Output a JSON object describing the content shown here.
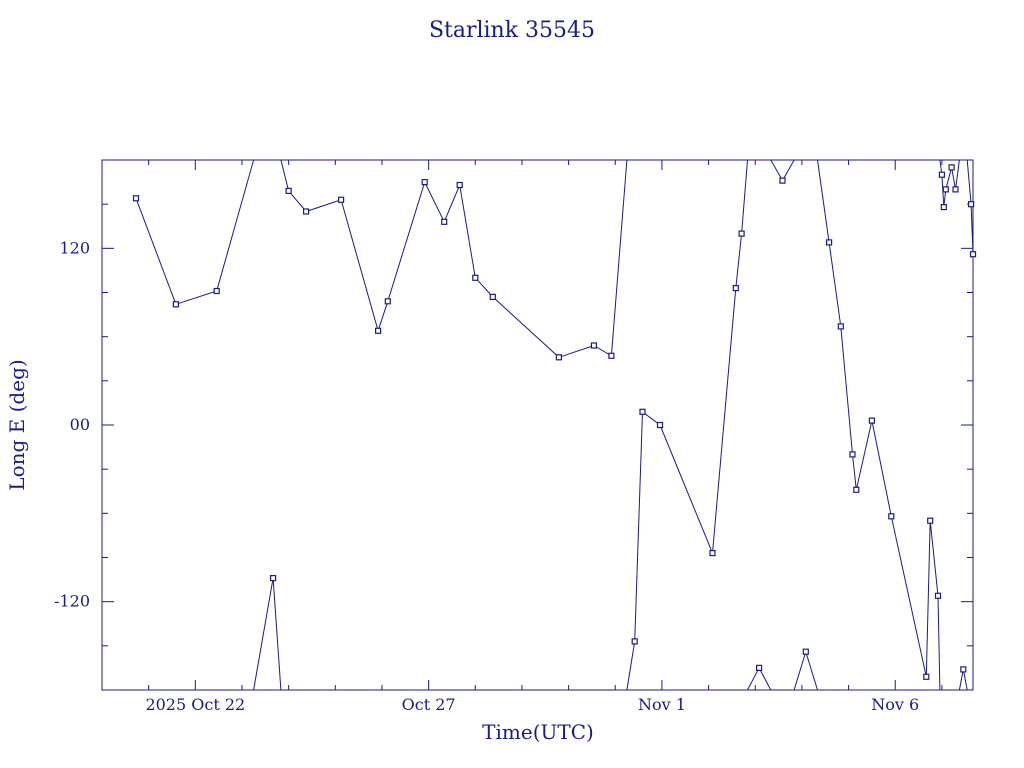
{
  "chart_data": {
    "type": "line",
    "title": "Starlink 35545",
    "xlabel": "Time(UTC)",
    "ylabel": "Long E (deg)",
    "xlim": [
      "2025-10-20T00:00",
      "2025-11-07T16:00"
    ],
    "ylim": [
      -180,
      180
    ],
    "x_tick_labels": [
      {
        "x": "2025-10-22T00:00",
        "label": "2025 Oct 22"
      },
      {
        "x": "2025-10-27T00:00",
        "label": "Oct 27"
      },
      {
        "x": "2025-11-01T00:00",
        "label": "Nov  1"
      },
      {
        "x": "2025-11-06T00:00",
        "label": "Nov  6"
      }
    ],
    "y_tick_labels": [
      {
        "y": 120,
        "label": "120"
      },
      {
        "y": 0,
        "label": "00"
      },
      {
        "y": -120,
        "label": "-120"
      }
    ],
    "grid": false,
    "legend": "none",
    "series": [
      {
        "points": [
          {
            "x": "2025-10-20T17:30",
            "y": 154
          },
          {
            "x": "2025-10-21T14:00",
            "y": 82
          },
          {
            "x": "2025-10-22T11:00",
            "y": 91
          },
          {
            "x": "2025-10-23T06:00",
            "y": 180
          },
          {
            "x": "2025-10-23T06:00",
            "y": -180
          },
          {
            "x": "2025-10-23T16:00",
            "y": -104
          },
          {
            "x": "2025-10-23T20:00",
            "y": -180
          },
          {
            "x": "2025-10-23T20:00",
            "y": 180
          },
          {
            "x": "2025-10-24T00:00",
            "y": 159
          },
          {
            "x": "2025-10-24T09:00",
            "y": 145
          },
          {
            "x": "2025-10-25T03:00",
            "y": 153
          },
          {
            "x": "2025-10-25T22:00",
            "y": 64
          },
          {
            "x": "2025-10-26T03:00",
            "y": 84
          },
          {
            "x": "2025-10-26T22:00",
            "y": 165
          },
          {
            "x": "2025-10-27T08:00",
            "y": 138
          },
          {
            "x": "2025-10-27T16:00",
            "y": 163
          },
          {
            "x": "2025-10-28T00:00",
            "y": 100
          },
          {
            "x": "2025-10-28T09:00",
            "y": 87
          },
          {
            "x": "2025-10-29T19:00",
            "y": 46
          },
          {
            "x": "2025-10-30T13:00",
            "y": 54
          },
          {
            "x": "2025-10-30T22:00",
            "y": 47
          },
          {
            "x": "2025-10-31T06:00",
            "y": 180
          },
          {
            "x": "2025-10-31T06:00",
            "y": -180
          },
          {
            "x": "2025-10-31T10:00",
            "y": -147
          },
          {
            "x": "2025-10-31T14:00",
            "y": 9
          },
          {
            "x": "2025-10-31T23:00",
            "y": 0
          },
          {
            "x": "2025-11-02T02:00",
            "y": -87
          },
          {
            "x": "2025-11-02T14:00",
            "y": 93
          },
          {
            "x": "2025-11-02T17:00",
            "y": 130
          },
          {
            "x": "2025-11-02T20:00",
            "y": 180
          },
          {
            "x": "2025-11-02T20:00",
            "y": -180
          },
          {
            "x": "2025-11-03T02:00",
            "y": -165
          },
          {
            "x": "2025-11-03T08:00",
            "y": -180
          },
          {
            "x": "2025-11-03T08:00",
            "y": 180
          },
          {
            "x": "2025-11-03T14:00",
            "y": 166
          },
          {
            "x": "2025-11-03T20:00",
            "y": 180
          },
          {
            "x": "2025-11-03T20:00",
            "y": -180
          },
          {
            "x": "2025-11-04T02:00",
            "y": -154
          },
          {
            "x": "2025-11-04T08:00",
            "y": -180
          },
          {
            "x": "2025-11-04T08:00",
            "y": 180
          },
          {
            "x": "2025-11-04T14:00",
            "y": 124
          },
          {
            "x": "2025-11-04T20:00",
            "y": 67
          },
          {
            "x": "2025-11-05T02:00",
            "y": -20
          },
          {
            "x": "2025-11-05T04:00",
            "y": -44
          },
          {
            "x": "2025-11-05T12:00",
            "y": 3
          },
          {
            "x": "2025-11-05T22:00",
            "y": -62
          },
          {
            "x": "2025-11-06T16:00",
            "y": -171
          },
          {
            "x": "2025-11-06T18:00",
            "y": -65
          },
          {
            "x": "2025-11-06T22:00",
            "y": -116
          },
          {
            "x": "2025-11-06T23:00",
            "y": -180
          },
          {
            "x": "2025-11-06T23:00",
            "y": 180
          },
          {
            "x": "2025-11-07T00:00",
            "y": 170
          },
          {
            "x": "2025-11-07T01:00",
            "y": 148
          },
          {
            "x": "2025-11-07T02:00",
            "y": 160
          },
          {
            "x": "2025-11-07T05:00",
            "y": 175
          },
          {
            "x": "2025-11-07T07:00",
            "y": 160
          },
          {
            "x": "2025-11-07T09:00",
            "y": 180
          },
          {
            "x": "2025-11-07T09:00",
            "y": -180
          },
          {
            "x": "2025-11-07T11:00",
            "y": -166
          },
          {
            "x": "2025-11-07T13:00",
            "y": -180
          },
          {
            "x": "2025-11-07T13:00",
            "y": 180
          },
          {
            "x": "2025-11-07T15:00",
            "y": 150
          },
          {
            "x": "2025-11-07T16:00",
            "y": 116
          }
        ]
      }
    ]
  }
}
